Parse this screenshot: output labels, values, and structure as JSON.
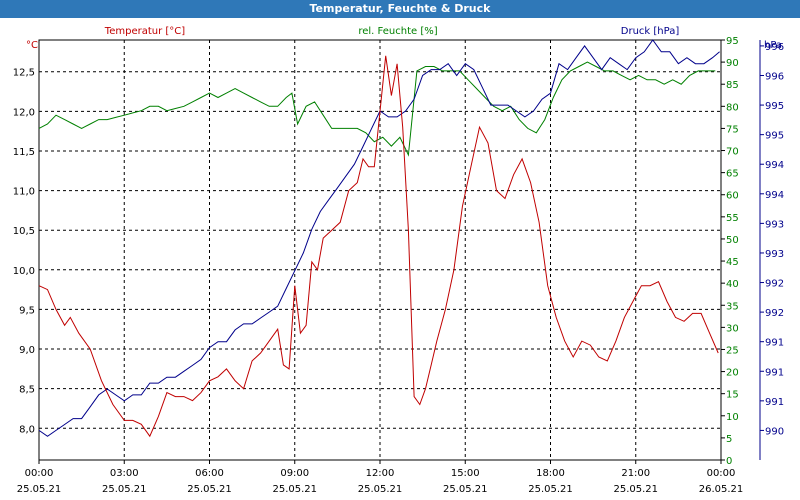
{
  "title": "Temperatur, Feuchte & Druck",
  "chart_data": {
    "type": "line",
    "title": "Temperatur, Feuchte & Druck",
    "x_tick_labels": [
      [
        "00:00",
        "25.05.21"
      ],
      [
        "03:00",
        "25.05.21"
      ],
      [
        "06:00",
        "25.05.21"
      ],
      [
        "09:00",
        "25.05.21"
      ],
      [
        "12:00",
        "25.05.21"
      ],
      [
        "15:00",
        "25.05.21"
      ],
      [
        "18:00",
        "25.05.21"
      ],
      [
        "21:00",
        "25.05.21"
      ],
      [
        "00:00",
        "26.05.21"
      ]
    ],
    "xlim_hours": [
      0,
      24
    ],
    "grid": true,
    "axes": {
      "temperature": {
        "label": "Temperatur [°C]",
        "unit": "°C",
        "color": "#c00000",
        "ylim": [
          7.6,
          12.9
        ],
        "ticks": [
          "8,0",
          "8,5",
          "9,0",
          "9,5",
          "10,0",
          "10,5",
          "11,0",
          "11,5",
          "12,0",
          "12,5"
        ],
        "tick_values": [
          8.0,
          8.5,
          9.0,
          9.5,
          10.0,
          10.5,
          11.0,
          11.5,
          12.0,
          12.5
        ]
      },
      "humidity": {
        "label": "rel. Feuchte [%]",
        "unit": "%",
        "color": "#008000",
        "ylim": [
          0,
          95
        ],
        "ticks": [
          "0",
          "5",
          "10",
          "15",
          "20",
          "25",
          "30",
          "35",
          "40",
          "45",
          "50",
          "55",
          "60",
          "65",
          "70",
          "75",
          "80",
          "85",
          "90",
          "95"
        ],
        "tick_values": [
          0,
          5,
          10,
          15,
          20,
          25,
          30,
          35,
          40,
          45,
          50,
          55,
          60,
          65,
          70,
          75,
          80,
          85,
          90,
          95
        ]
      },
      "pressure": {
        "label": "Druck [hPa]",
        "unit": "hPa",
        "color": "#00008b",
        "ylim": [
          989.5,
          996.6
        ],
        "ticks": [
          "990",
          "991",
          "991",
          "991",
          "992",
          "992",
          "993",
          "993",
          "994",
          "994",
          "995",
          "995",
          "996",
          "996"
        ],
        "tick_values": [
          990.0,
          990.5,
          991.0,
          991.5,
          992.0,
          992.5,
          993.0,
          993.5,
          994.0,
          994.5,
          995.0,
          995.5,
          996.0,
          996.5
        ]
      }
    },
    "series": [
      {
        "name": "Temperatur [°C]",
        "axis": "temperature",
        "color": "#c00000",
        "x": [
          0,
          0.3,
          0.6,
          0.9,
          1.1,
          1.4,
          1.8,
          2.2,
          2.6,
          3.0,
          3.3,
          3.6,
          3.9,
          4.2,
          4.5,
          4.8,
          5.1,
          5.4,
          5.7,
          6.0,
          6.3,
          6.6,
          6.9,
          7.2,
          7.5,
          7.8,
          8.1,
          8.4,
          8.6,
          8.8,
          9.0,
          9.2,
          9.4,
          9.6,
          9.8,
          10.0,
          10.3,
          10.6,
          10.9,
          11.2,
          11.4,
          11.6,
          11.8,
          12.0,
          12.2,
          12.4,
          12.6,
          12.8,
          13.0,
          13.2,
          13.4,
          13.6,
          13.8,
          14.0,
          14.3,
          14.6,
          14.9,
          15.2,
          15.5,
          15.8,
          16.1,
          16.4,
          16.7,
          17.0,
          17.3,
          17.6,
          17.9,
          18.2,
          18.5,
          18.8,
          19.1,
          19.4,
          19.7,
          20.0,
          20.3,
          20.6,
          20.9,
          21.2,
          21.5,
          21.8,
          22.1,
          22.4,
          22.7,
          23.0,
          23.3,
          23.6,
          23.9
        ],
        "values": [
          9.8,
          9.75,
          9.5,
          9.3,
          9.4,
          9.2,
          9.0,
          8.6,
          8.3,
          8.1,
          8.1,
          8.05,
          7.9,
          8.15,
          8.45,
          8.4,
          8.4,
          8.35,
          8.45,
          8.6,
          8.65,
          8.75,
          8.6,
          8.5,
          8.85,
          8.95,
          9.1,
          9.25,
          8.8,
          8.75,
          9.8,
          9.2,
          9.3,
          10.1,
          10.0,
          10.4,
          10.5,
          10.6,
          11.0,
          11.1,
          11.4,
          11.3,
          11.3,
          12.0,
          12.7,
          12.2,
          12.6,
          11.8,
          10.5,
          8.4,
          8.3,
          8.5,
          8.8,
          9.1,
          9.5,
          10.0,
          10.8,
          11.3,
          11.8,
          11.6,
          11.0,
          10.9,
          11.2,
          11.4,
          11.1,
          10.6,
          9.8,
          9.4,
          9.1,
          8.9,
          9.1,
          9.05,
          8.9,
          8.85,
          9.1,
          9.4,
          9.6,
          9.8,
          9.8,
          9.85,
          9.6,
          9.4,
          9.35,
          9.45,
          9.45,
          9.2,
          8.95
        ]
      },
      {
        "name": "rel. Feuchte [%]",
        "axis": "humidity",
        "color": "#008000",
        "x": [
          0,
          0.3,
          0.6,
          0.9,
          1.2,
          1.5,
          1.8,
          2.1,
          2.4,
          2.7,
          3.0,
          3.3,
          3.6,
          3.9,
          4.2,
          4.5,
          4.8,
          5.1,
          5.4,
          5.7,
          6.0,
          6.3,
          6.6,
          6.9,
          7.2,
          7.5,
          7.8,
          8.1,
          8.4,
          8.7,
          8.9,
          9.1,
          9.4,
          9.7,
          10.0,
          10.3,
          10.6,
          10.9,
          11.2,
          11.5,
          11.8,
          12.1,
          12.4,
          12.7,
          13.0,
          13.3,
          13.6,
          13.9,
          14.2,
          14.5,
          14.8,
          15.1,
          15.4,
          15.7,
          16.0,
          16.3,
          16.6,
          16.9,
          17.2,
          17.5,
          17.8,
          18.1,
          18.4,
          18.7,
          19.0,
          19.3,
          19.6,
          19.9,
          20.2,
          20.5,
          20.8,
          21.1,
          21.4,
          21.7,
          22.0,
          22.3,
          22.6,
          22.9,
          23.2,
          23.5,
          23.8
        ],
        "values": [
          75,
          76,
          78,
          77,
          76,
          75,
          76,
          77,
          77,
          77.5,
          78,
          78.5,
          79,
          80,
          80,
          79,
          79.5,
          80,
          81,
          82,
          83,
          82,
          83,
          84,
          83,
          82,
          81,
          80,
          80,
          82,
          83,
          76,
          80,
          81,
          78,
          75,
          75,
          75,
          75,
          74,
          72,
          73,
          71,
          73,
          69,
          88,
          89,
          89,
          88,
          88,
          88,
          86,
          84,
          82,
          80,
          79,
          80,
          77,
          75,
          74,
          77,
          82,
          86,
          88,
          89,
          90,
          89,
          88,
          88,
          87,
          86,
          87,
          86,
          86,
          85,
          86,
          85,
          87,
          88,
          88,
          88
        ]
      },
      {
        "name": "Druck [hPa]",
        "axis": "pressure",
        "color": "#00008b",
        "x": [
          0,
          0.3,
          0.6,
          0.9,
          1.2,
          1.5,
          1.8,
          2.1,
          2.4,
          2.7,
          3.0,
          3.3,
          3.6,
          3.9,
          4.2,
          4.5,
          4.8,
          5.1,
          5.4,
          5.7,
          6.0,
          6.3,
          6.6,
          6.9,
          7.2,
          7.5,
          7.8,
          8.1,
          8.4,
          8.7,
          9.0,
          9.3,
          9.6,
          9.9,
          10.2,
          10.5,
          10.8,
          11.1,
          11.4,
          11.7,
          12.0,
          12.3,
          12.6,
          12.9,
          13.2,
          13.5,
          13.8,
          14.1,
          14.4,
          14.7,
          15.0,
          15.3,
          15.6,
          15.9,
          16.2,
          16.5,
          16.8,
          17.1,
          17.4,
          17.7,
          18.0,
          18.3,
          18.6,
          18.9,
          19.2,
          19.5,
          19.8,
          20.1,
          20.4,
          20.7,
          21.0,
          21.3,
          21.6,
          21.9,
          22.2,
          22.5,
          22.8,
          23.1,
          23.4,
          23.7,
          23.95
        ],
        "values": [
          990.0,
          989.9,
          990.0,
          990.1,
          990.2,
          990.2,
          990.4,
          990.6,
          990.7,
          990.6,
          990.5,
          990.6,
          990.6,
          990.8,
          990.8,
          990.9,
          990.9,
          991.0,
          991.1,
          991.2,
          991.4,
          991.5,
          991.5,
          991.7,
          991.8,
          991.8,
          991.9,
          992.0,
          992.1,
          992.4,
          992.7,
          993.0,
          993.4,
          993.7,
          993.9,
          994.1,
          994.3,
          994.5,
          994.8,
          995.1,
          995.4,
          995.3,
          995.3,
          995.4,
          995.6,
          996.0,
          996.1,
          996.1,
          996.2,
          996.0,
          996.2,
          996.1,
          995.8,
          995.5,
          995.5,
          995.5,
          995.4,
          995.3,
          995.4,
          995.6,
          995.7,
          996.2,
          996.1,
          996.3,
          996.5,
          996.3,
          996.1,
          996.3,
          996.2,
          996.1,
          996.3,
          996.4,
          996.6,
          996.4,
          996.4,
          996.2,
          996.3,
          996.2,
          996.2,
          996.3,
          996.4
        ]
      }
    ]
  }
}
